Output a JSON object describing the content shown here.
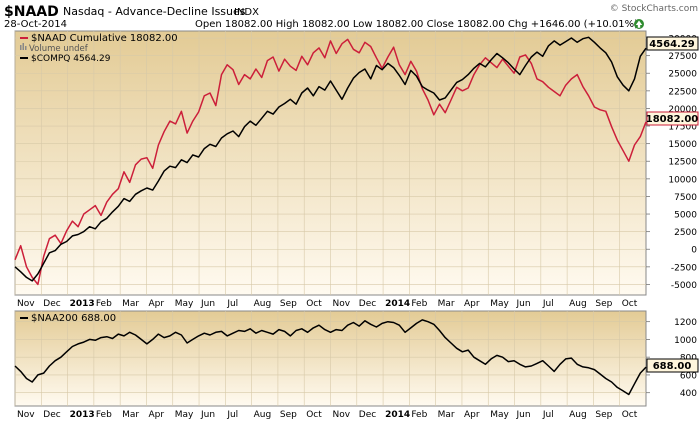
{
  "header": {
    "symbol": "$NAAD",
    "description": "Nasdaq - Advance-Decline Issues",
    "exchange": "INDX",
    "date": "28-Oct-2014",
    "ohlc_text": "Open 18082.00  High 18082.00  Low 18082.00  Close 18082.00  Chg +1646.00 (+10.01%)",
    "change_icon": "up-arrow-icon",
    "watermark": "© StockCharts.com"
  },
  "colors": {
    "red_series": "#cc1f3a",
    "black_series": "#000000",
    "panel_gradient_top": "#e3cb95",
    "panel_gradient_bottom": "#fffaf0",
    "grid": "#d7c9a8",
    "price_box_fill": "#fff6dd"
  },
  "x_axis": {
    "labels": [
      "Nov",
      "Dec",
      "2013",
      "Feb",
      "Mar",
      "Apr",
      "May",
      "Jun",
      "Jul",
      "Aug",
      "Sep",
      "Oct",
      "Nov",
      "Dec",
      "2014",
      "Feb",
      "Mar",
      "Apr",
      "May",
      "Jun",
      "Jul",
      "Aug",
      "Sep",
      "Oct"
    ],
    "bold_labels": [
      "2013",
      "2014"
    ]
  },
  "chart_data": [
    {
      "type": "line",
      "panel": "main",
      "legend_position": "top-left",
      "y_axis_side": "right",
      "ylim": [
        -6500,
        31000
      ],
      "yticks": [
        -5000,
        -2500,
        0,
        2500,
        5000,
        7500,
        10000,
        12500,
        15000,
        17500,
        20000,
        22500,
        25000,
        27500,
        30000
      ],
      "legend": {
        "series_1": "$NAAD Cumulative 18082.00",
        "volume_note": "Volume undef",
        "series_2": "$COMPQ 4564.29"
      },
      "price_labels": [
        "4564.29",
        "18082.00"
      ],
      "series": [
        {
          "name": "$NAAD Cumulative",
          "color": "#cc1f3a",
          "values": [
            -1500,
            500,
            -2500,
            -4000,
            -5000,
            -1000,
            1500,
            2000,
            800,
            2600,
            4000,
            3200,
            5000,
            5600,
            6200,
            4800,
            6700,
            7800,
            8600,
            11000,
            9500,
            12000,
            12800,
            13000,
            11500,
            14800,
            16700,
            18200,
            17800,
            19600,
            16500,
            18200,
            19500,
            21800,
            22200,
            20400,
            24800,
            26200,
            25500,
            23400,
            24800,
            24200,
            25600,
            24400,
            26800,
            27300,
            25300,
            27000,
            26000,
            25400,
            27400,
            26200,
            27900,
            28600,
            27200,
            29600,
            27800,
            29200,
            29800,
            28400,
            27900,
            29400,
            28800,
            27200,
            25700,
            27300,
            28700,
            26200,
            24800,
            26700,
            25300,
            22800,
            21200,
            19100,
            20600,
            19400,
            21200,
            23000,
            22500,
            22900,
            24800,
            26200,
            27200,
            26500,
            25800,
            27000,
            26000,
            25000,
            27300,
            27600,
            26400,
            24200,
            23800,
            23000,
            22400,
            21800,
            23300,
            24200,
            24800,
            23100,
            21800,
            20200,
            19800,
            19600,
            17400,
            15500,
            14000,
            12500,
            14800,
            16000,
            18082
          ]
        },
        {
          "name": "$COMPQ",
          "color": "#000000",
          "values": [
            -2500,
            -3200,
            -4000,
            -4500,
            -3500,
            -2000,
            -500,
            -200,
            700,
            1100,
            1900,
            2100,
            2500,
            3200,
            2900,
            3900,
            4400,
            5300,
            6100,
            7200,
            6800,
            7800,
            8300,
            8700,
            8400,
            9700,
            11100,
            11800,
            11600,
            12700,
            12300,
            13400,
            13100,
            14300,
            14900,
            14600,
            15800,
            16400,
            16800,
            16000,
            17400,
            18200,
            17600,
            18600,
            19600,
            19200,
            20200,
            20700,
            21300,
            20600,
            22200,
            22900,
            21800,
            23100,
            22600,
            23900,
            22600,
            21300,
            22900,
            24300,
            25100,
            25600,
            24200,
            26100,
            25500,
            26400,
            25800,
            24700,
            23400,
            25400,
            24600,
            23100,
            22600,
            22200,
            21200,
            21500,
            22600,
            23700,
            24100,
            24800,
            25700,
            26400,
            25900,
            26900,
            27800,
            27200,
            26500,
            25600,
            24800,
            26100,
            27300,
            28000,
            27400,
            28900,
            29600,
            29000,
            29500,
            30000,
            29400,
            29900,
            30100,
            29400,
            28600,
            27900,
            26600,
            24500,
            23300,
            22500,
            24200,
            27400,
            28560
          ]
        }
      ]
    },
    {
      "type": "line",
      "panel": "lower",
      "legend_position": "top-left",
      "y_axis_side": "right",
      "ylim": [
        250,
        1320
      ],
      "yticks": [
        400,
        600,
        800,
        1000,
        1200
      ],
      "legend": {
        "series_1": "$NAA200 688.00"
      },
      "price_labels": [
        "688.00"
      ],
      "series": [
        {
          "name": "$NAA200",
          "color": "#000000",
          "values": [
            700,
            640,
            560,
            520,
            600,
            620,
            700,
            760,
            800,
            860,
            920,
            950,
            970,
            1000,
            990,
            1020,
            1030,
            1010,
            1060,
            1040,
            1080,
            1050,
            1000,
            950,
            1000,
            1060,
            1020,
            1040,
            1080,
            1050,
            960,
            1000,
            1040,
            1070,
            1050,
            1080,
            1090,
            1040,
            1070,
            1100,
            1090,
            1120,
            1070,
            1100,
            1080,
            1060,
            1110,
            1090,
            1040,
            1100,
            1120,
            1080,
            1130,
            1160,
            1110,
            1080,
            1110,
            1100,
            1160,
            1190,
            1150,
            1210,
            1170,
            1140,
            1180,
            1200,
            1190,
            1160,
            1080,
            1130,
            1180,
            1220,
            1200,
            1170,
            1100,
            1020,
            960,
            900,
            860,
            880,
            800,
            760,
            720,
            780,
            820,
            800,
            750,
            760,
            720,
            690,
            700,
            730,
            760,
            700,
            640,
            720,
            780,
            790,
            720,
            690,
            680,
            660,
            610,
            560,
            520,
            460,
            420,
            380,
            500,
            620,
            688
          ]
        }
      ]
    }
  ]
}
